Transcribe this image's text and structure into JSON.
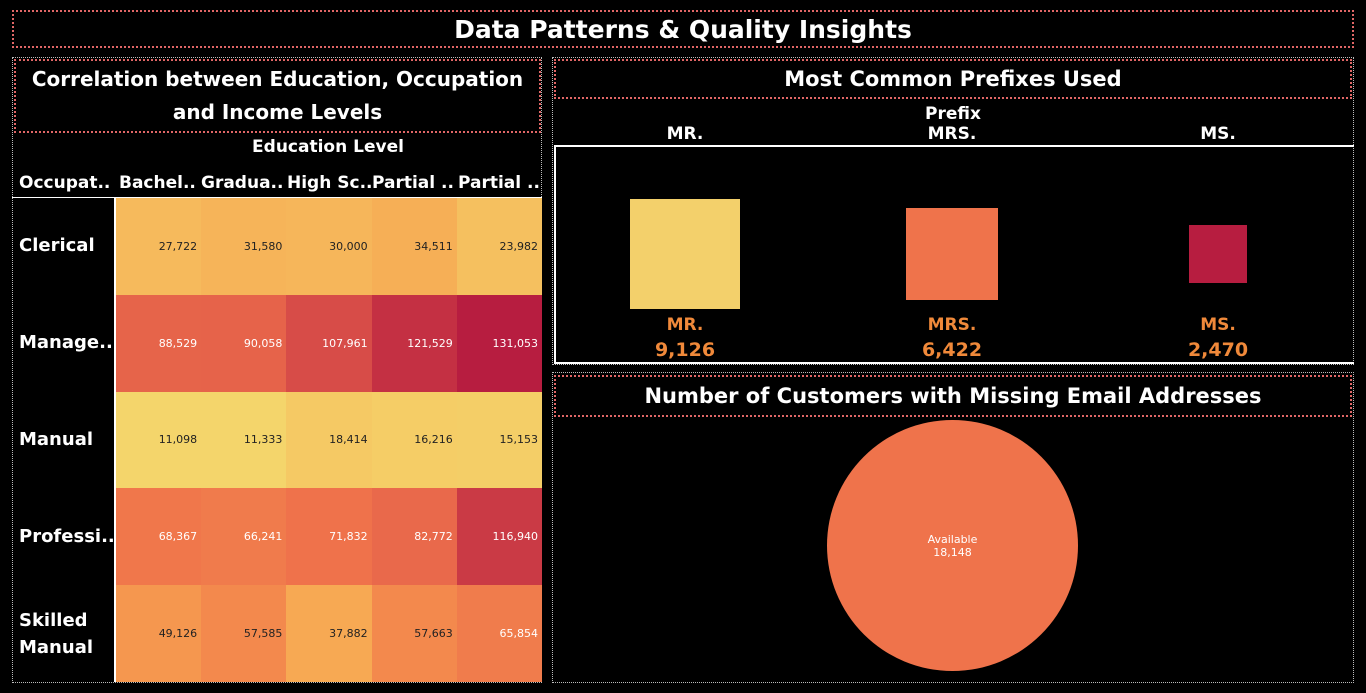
{
  "dashboard": {
    "title": "Data Patterns & Quality Insights"
  },
  "chart_data": [
    {
      "type": "heatmap",
      "title": "Correlation between Education, Occupation and Income Levels",
      "column_axis_title": "Education Level",
      "row_axis_title": "Occupat..",
      "columns": [
        "Bachel..",
        "Gradua..",
        "High Sc..",
        "Partial ..",
        "Partial .."
      ],
      "rows": [
        "Clerical",
        "Manage..",
        "Manual",
        "Professi..",
        "Skilled Manual"
      ],
      "values": [
        [
          27722,
          31580,
          30000,
          34511,
          23982
        ],
        [
          88529,
          90058,
          107961,
          121529,
          131053
        ],
        [
          11098,
          11333,
          18414,
          16216,
          15153
        ],
        [
          68367,
          66241,
          71832,
          82772,
          116940
        ],
        [
          49126,
          57585,
          37882,
          57663,
          65854
        ]
      ],
      "value_labels": [
        [
          "27,722",
          "31,580",
          "30,000",
          "34,511",
          "23,982"
        ],
        [
          "88,529",
          "90,058",
          "107,961",
          "121,529",
          "131,053"
        ],
        [
          "11,098",
          "11,333",
          "18,414",
          "16,216",
          "15,153"
        ],
        [
          "68,367",
          "66,241",
          "71,832",
          "82,772",
          "116,940"
        ],
        [
          "49,126",
          "57,585",
          "37,882",
          "57,663",
          "65,854"
        ]
      ],
      "color_scale": [
        "#f4d56b",
        "#f7a450",
        "#ef734b",
        "#e05a4a",
        "#b71d40"
      ]
    },
    {
      "type": "bar",
      "title": "Most Common Prefixes Used",
      "xlabel": "Prefix",
      "categories": [
        "MR.",
        "MRS.",
        "MS."
      ],
      "values": [
        9126,
        6422,
        2470
      ],
      "value_labels": [
        "9,126",
        "6,422",
        "2,470"
      ],
      "colors": [
        "#f3d06b",
        "#ef734b",
        "#b71d40"
      ],
      "label_color": "#f0893a",
      "mark": "square"
    },
    {
      "type": "pie",
      "title": "Number of Customers with Missing Email Addresses",
      "slices": [
        {
          "label": "Available",
          "value": 18148,
          "value_label": "18,148",
          "color": "#ef734b"
        }
      ]
    }
  ]
}
